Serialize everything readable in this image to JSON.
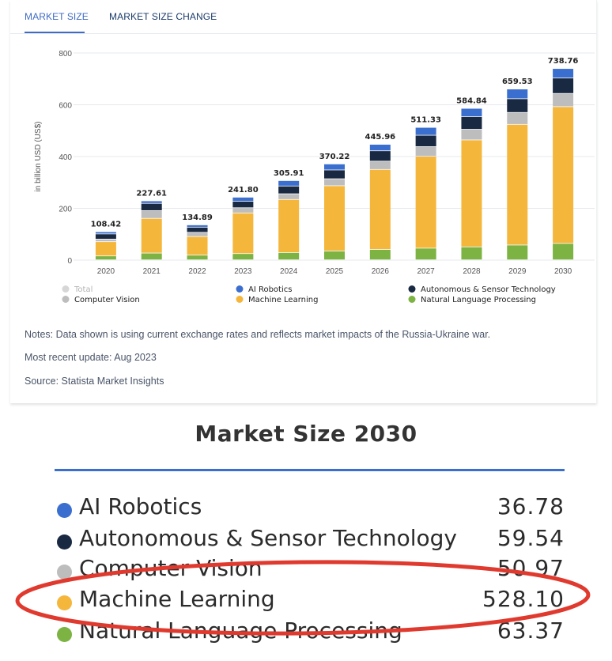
{
  "tabs": [
    {
      "label": "MARKET SIZE",
      "active": true
    },
    {
      "label": "MARKET SIZE CHANGE",
      "active": false
    }
  ],
  "notes": {
    "note": "Notes: Data shown is using current exchange rates and reflects market impacts of the Russia-Ukraine war.",
    "update": "Most recent update: Aug 2023",
    "source": "Source: Statista Market Insights"
  },
  "chart_data": {
    "type": "bar",
    "stacked": true,
    "categories": [
      "2020",
      "2021",
      "2022",
      "2023",
      "2024",
      "2025",
      "2026",
      "2027",
      "2028",
      "2029",
      "2030"
    ],
    "ylabel": "in billion USD (US$)",
    "ylim": [
      0,
      800
    ],
    "yticks": [
      0,
      200,
      400,
      600,
      800
    ],
    "grid": true,
    "totals": [
      108.42,
      227.61,
      134.89,
      241.8,
      305.91,
      370.22,
      445.96,
      511.33,
      584.84,
      659.53,
      738.76
    ],
    "total_labels": [
      "108.42",
      "227.61",
      "134.89",
      "241.80",
      "305.91",
      "370.22",
      "445.96",
      "511.33",
      "584.84",
      "659.53",
      "738.76"
    ],
    "series": [
      {
        "name": "Natural Language Processing",
        "color": "#7cb342",
        "values": [
          15,
          26,
          18,
          24,
          28,
          34,
          40,
          45,
          50,
          57,
          63.37
        ]
      },
      {
        "name": "Machine Learning",
        "color": "#f5b63c",
        "values": [
          55,
          134,
          72,
          157,
          205,
          252,
          309,
          355,
          413,
          466,
          528.1
        ]
      },
      {
        "name": "Computer Vision",
        "color": "#bdbdbd",
        "values": [
          10,
          30,
          16,
          20,
          22,
          27,
          32,
          37,
          41,
          46,
          50.97
        ]
      },
      {
        "name": "Autonomous & Sensor Technology",
        "color": "#1a2942",
        "values": [
          20,
          28,
          20,
          25,
          30,
          34,
          40,
          44,
          49,
          53,
          59.54
        ]
      },
      {
        "name": "AI Robotics",
        "color": "#3b6fcf",
        "values": [
          8.42,
          9.61,
          8.89,
          15.8,
          20.91,
          23.22,
          24.96,
          30.33,
          31.84,
          37.53,
          36.78
        ]
      }
    ],
    "legend": [
      {
        "name": "Total",
        "color": "#d6d6d6",
        "muted": true
      },
      {
        "name": "AI Robotics",
        "color": "#3b6fcf"
      },
      {
        "name": "Autonomous & Sensor Technology",
        "color": "#1a2942"
      },
      {
        "name": "Computer Vision",
        "color": "#bdbdbd"
      },
      {
        "name": "Machine Learning",
        "color": "#f5b63c"
      },
      {
        "name": "Natural Language Processing",
        "color": "#7cb342"
      }
    ],
    "legend_position": "bottom"
  },
  "summary": {
    "title": "Market Size 2030",
    "rows": [
      {
        "name": "AI Robotics",
        "value": "36.78",
        "color": "#3b6fcf"
      },
      {
        "name": "Autonomous & Sensor Technology",
        "value": "59.54",
        "color": "#1a2942"
      },
      {
        "name": "Computer Vision",
        "value": "50.97",
        "color": "#bdbdbd"
      },
      {
        "name": "Machine Learning",
        "value": "528.10",
        "color": "#f5b63c"
      },
      {
        "name": "Natural Language Processing",
        "value": "63.37",
        "color": "#7cb342"
      }
    ],
    "highlight_color": "#e03a2f"
  }
}
